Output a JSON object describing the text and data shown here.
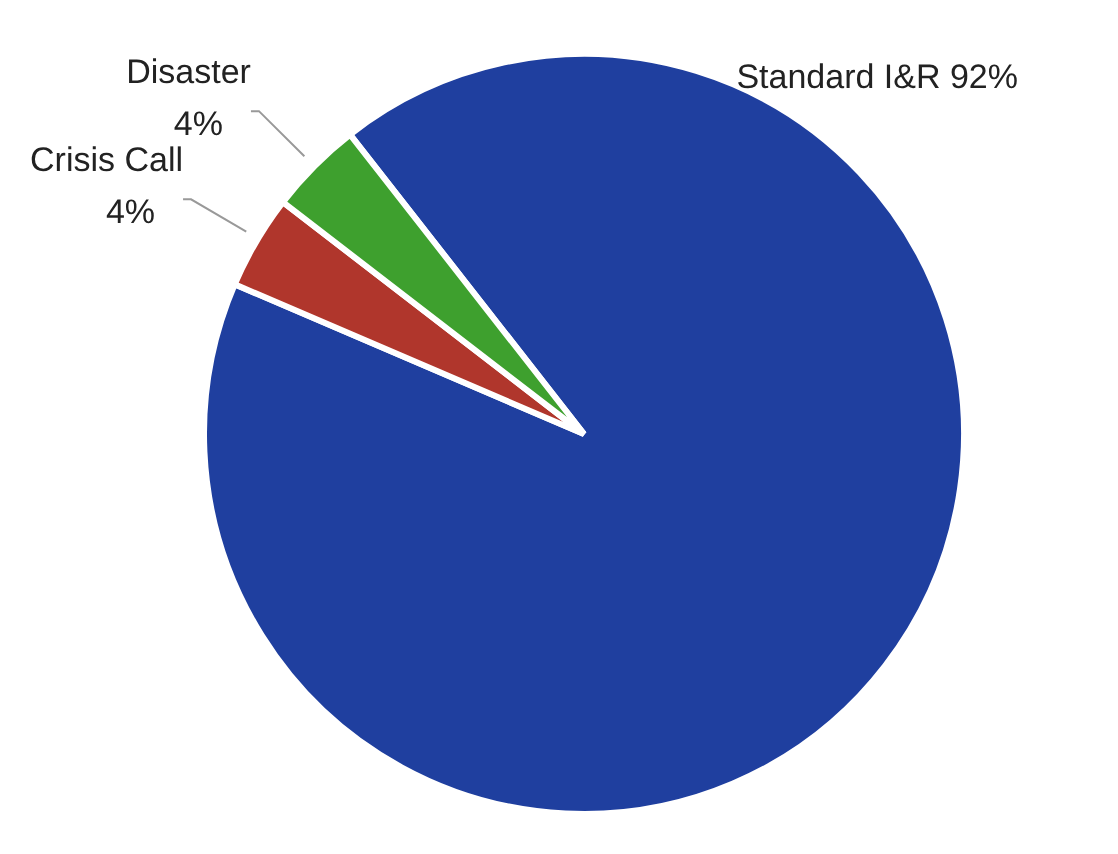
{
  "chart_data": {
    "type": "pie",
    "categories": [
      "Standard I&R",
      "Crisis Call",
      "Disaster"
    ],
    "values": [
      92,
      4,
      4
    ],
    "value_labels": [
      "92%",
      "4%",
      "4%"
    ],
    "colors": [
      "#1f3f9f",
      "#b0362c",
      "#3ea02e"
    ]
  }
}
